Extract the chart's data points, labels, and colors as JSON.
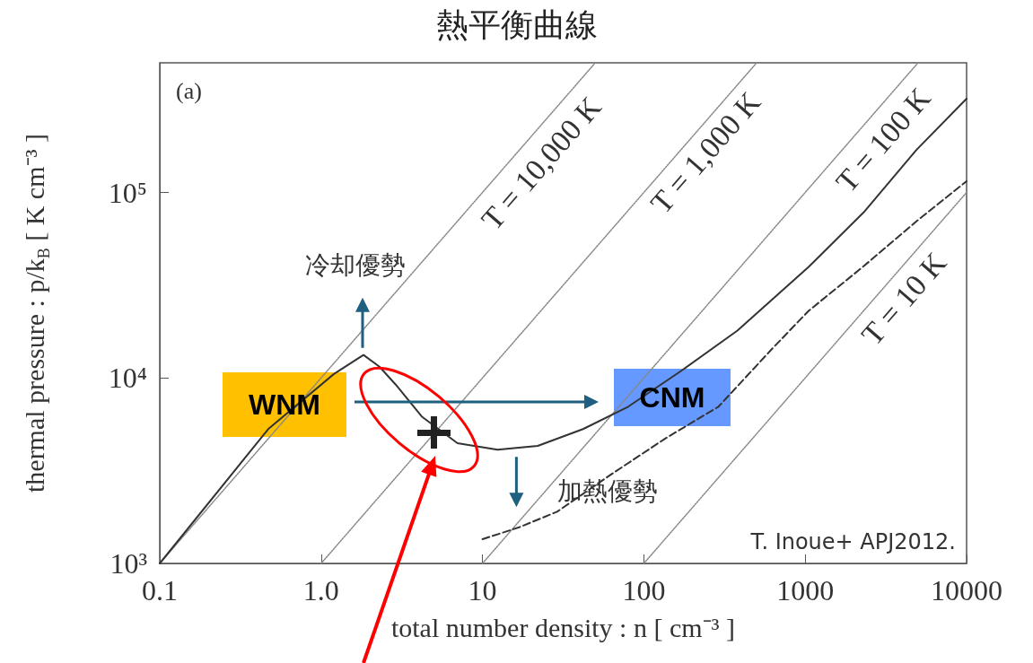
{
  "chart_data": {
    "type": "line",
    "title": "熱平衡曲線",
    "xlabel": "total number density : n [ cm⁻³ ]",
    "ylabel": "thermal pressure : p/k$_{B}$ [ K cm⁻³ ]",
    "log": "xy",
    "grid": false,
    "marker": "none",
    "xlim": [
      0.1,
      10000
    ],
    "xticks": [
      0.1,
      {
        "value": 1,
        "label": "1.0"
      },
      10,
      100,
      1000,
      10000
    ],
    "ylim": [
      1000,
      500000
    ],
    "yticks": [
      {
        "value": 1000,
        "label": "10³"
      },
      {
        "value": 10000,
        "label": "10⁴"
      },
      {
        "value": 100000,
        "label": "10⁵"
      }
    ],
    "series": [
      {
        "color": "#333333",
        "line_style": "solid",
        "x": [
          0.1,
          0.47,
          1.2,
          1.83,
          2.3,
          2.9,
          4.2,
          7.0,
          12.4,
          22,
          42,
          80,
          170,
          380,
          1050,
          2300,
          4900,
          10000
        ],
        "values": [
          1000,
          5300,
          10500,
          13300,
          11500,
          9200,
          6200,
          4450,
          4100,
          4300,
          5300,
          7000,
          10900,
          18000,
          39700,
          78000,
          170000,
          320000
        ]
      },
      {
        "color": "#333333",
        "line_style": "dashed",
        "x": [
          10,
          17,
          29,
          62,
          135,
          290,
          630,
          1050,
          2300,
          4900,
          10000
        ],
        "values": [
          1350,
          1570,
          1900,
          3000,
          4700,
          7000,
          14500,
          23000,
          40000,
          70000,
          115000
        ]
      },
      {
        "color": "#888888",
        "line_style": "dotted",
        "x": [
          0.1,
          50
        ],
        "values": [
          1000,
          500000
        ]
      },
      {
        "color": "#888888",
        "line_style": "dotted",
        "x": [
          1,
          500
        ],
        "values": [
          1000,
          500000
        ]
      },
      {
        "color": "#888888",
        "line_style": "dotted",
        "x": [
          10,
          5000
        ],
        "values": [
          1000,
          500000
        ]
      },
      {
        "color": "#888888",
        "line_style": "dotted",
        "x": [
          100,
          10000
        ],
        "values": [
          1000,
          100000
        ]
      }
    ],
    "annotations": [
      "(a)",
      "T. Inoue+ APJ2012.",
      "T = 10,000 K",
      "T = 1,000 K",
      "T = 100 K",
      "T = 10 K",
      {
        "text": "冷却優勢",
        "x": 1.83,
        "y": 13300
      },
      {
        "text": "加熱優勢",
        "x": 12.4,
        "y": 4100
      },
      "WNM",
      "CNM"
    ]
  }
}
